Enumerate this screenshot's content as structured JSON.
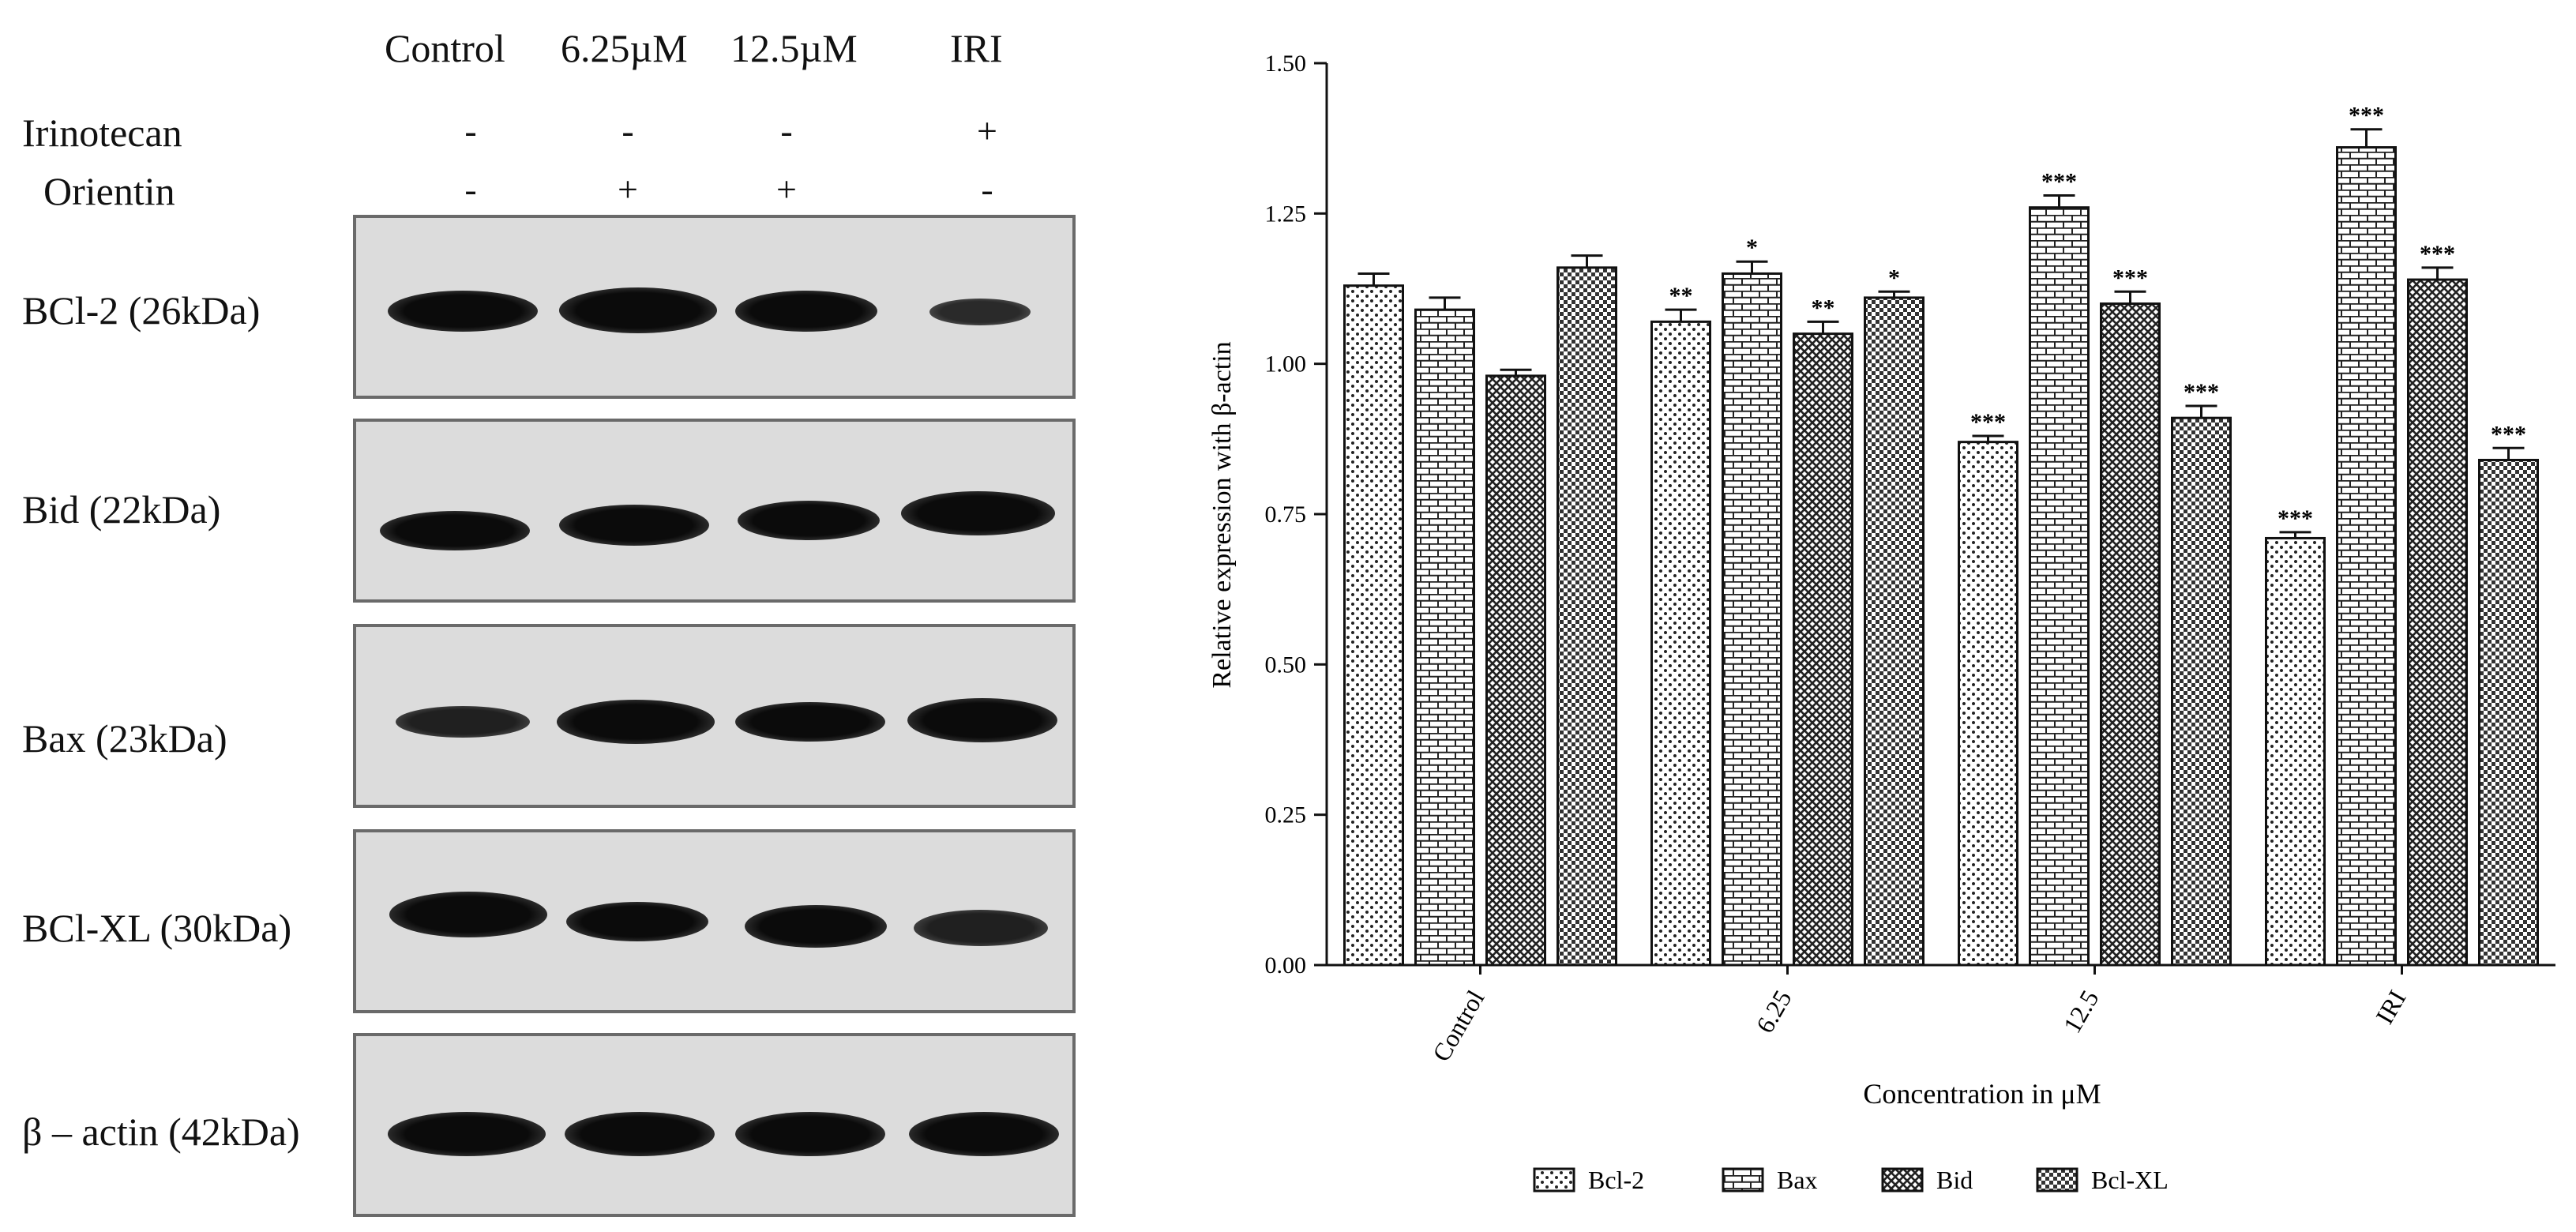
{
  "blot": {
    "lanes": [
      "Control",
      "6.25µM",
      "12.5µM",
      "IRI"
    ],
    "treatments": [
      {
        "name": "Irinotecan",
        "signs": [
          "-",
          "-",
          "-",
          "+"
        ]
      },
      {
        "name": "Orientin",
        "signs": [
          "-",
          "+",
          "+",
          "-"
        ]
      }
    ],
    "rows": [
      {
        "label": "BCl-2 (26kDa)",
        "intensity": [
          1.0,
          1.0,
          0.95,
          0.55
        ]
      },
      {
        "label": "Bid  (22kDa)",
        "intensity": [
          0.95,
          0.95,
          0.95,
          1.0
        ]
      },
      {
        "label": "Bax (23kDa)",
        "intensity": [
          0.7,
          1.0,
          0.95,
          1.0
        ]
      },
      {
        "label": "BCl-XL (30kDa)",
        "intensity": [
          1.0,
          0.95,
          0.95,
          0.8
        ]
      },
      {
        "label": "β – actin (42kDa)",
        "intensity": [
          1.0,
          1.0,
          1.0,
          1.0
        ]
      }
    ]
  },
  "chart_data": {
    "type": "bar",
    "xlabel": "Concentration in μM",
    "ylabel": "Relative expression with β-actin",
    "categories": [
      "Control",
      "6.25",
      "12.5",
      "IRI"
    ],
    "ylim": [
      0,
      1.5
    ],
    "yticks": [
      "0.00",
      "0.25",
      "0.50",
      "0.75",
      "1.00",
      "1.25",
      "1.50"
    ],
    "legend_position": "bottom",
    "series": [
      {
        "name": "Bcl-2",
        "pattern": "dots",
        "values": [
          1.13,
          1.07,
          0.87,
          0.71
        ],
        "errors": [
          0.02,
          0.02,
          0.01,
          0.01
        ],
        "stars": [
          "",
          "**",
          "***",
          "***"
        ]
      },
      {
        "name": "Bax",
        "pattern": "bricks",
        "values": [
          1.09,
          1.15,
          1.26,
          1.36
        ],
        "errors": [
          0.02,
          0.02,
          0.02,
          0.03
        ],
        "stars": [
          "",
          "*",
          "***",
          "***"
        ]
      },
      {
        "name": "Bid",
        "pattern": "cross",
        "values": [
          0.98,
          1.05,
          1.1,
          1.14
        ],
        "errors": [
          0.01,
          0.02,
          0.02,
          0.02
        ],
        "stars": [
          "",
          "**",
          "***",
          "***"
        ]
      },
      {
        "name": "Bcl-XL",
        "pattern": "checker",
        "values": [
          1.16,
          1.11,
          0.91,
          0.84
        ],
        "errors": [
          0.02,
          0.01,
          0.02,
          0.02
        ],
        "stars": [
          "",
          "*",
          "***",
          "***"
        ]
      }
    ]
  }
}
